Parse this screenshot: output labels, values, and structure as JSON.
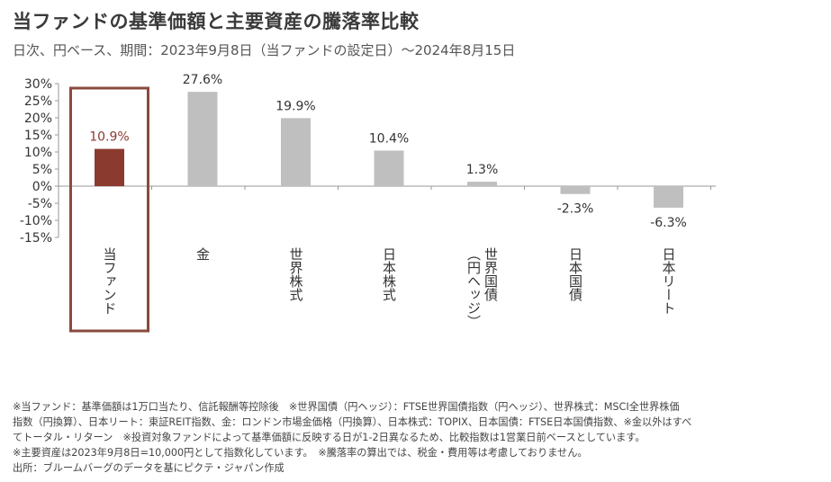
{
  "title": "当ファンドの基準価額と主要資産の騰落率比較",
  "subtitle": "日次、円ベース、期間：2023年9月8日（当ファンドの設定日）～2024年8月15日",
  "chart_data": {
    "type": "bar",
    "categories": [
      "当ファンド",
      "金",
      "世界株式",
      "日本株式",
      "世界国債（円ヘッジ）",
      "日本国債",
      "日本リート"
    ],
    "category_lines": [
      [
        "当ファンド"
      ],
      [
        "金"
      ],
      [
        "世界株式"
      ],
      [
        "日本株式"
      ],
      [
        "（円ヘッジ）",
        "世界国債"
      ],
      [
        "日本国債"
      ],
      [
        "日本リート"
      ]
    ],
    "values": [
      10.9,
      27.6,
      19.9,
      10.4,
      1.3,
      -2.3,
      -6.3
    ],
    "value_labels": [
      "10.9%",
      "27.6%",
      "19.9%",
      "10.4%",
      "1.3%",
      "-2.3%",
      "-6.3%"
    ],
    "ylim": [
      -15,
      30
    ],
    "yticks": [
      30,
      25,
      20,
      15,
      10,
      5,
      0,
      -5,
      -10,
      -15
    ],
    "ytick_labels": [
      "30%",
      "25%",
      "20%",
      "15%",
      "10%",
      "5%",
      "0%",
      "-5%",
      "-10%",
      "-15%"
    ],
    "highlight_index": 0,
    "colors": {
      "highlight": "#8b3a2f",
      "default": "#bfbfbf",
      "highlight_label": "#8b3a2f",
      "label": "#333333",
      "frame": "#8b4a3e",
      "axis": "#999999"
    }
  },
  "notes": [
    "※当ファンド：基準価額は1万口当たり、信託報酬等控除後　※世界国債（円ヘッジ）：FTSE世界国債指数（円ヘッジ）、世界株式：MSCI全世界株価",
    "指数（円換算）、日本リート：東証REIT指数、金：ロンドン市場金価格（円換算）、日本株式：TOPIX、日本国債：FTSE日本国債指数、※金以外はすべ",
    "てトータル・リターン　※投資対象ファンドによって基準価額に反映する日が1-2日異なるため、比較指数は1営業日前ベースとしています。",
    "※主要資産は2023年9月8日=10,000円として指数化しています。　※騰落率の算出では、税金・費用等は考慮しておりません。",
    "出所：ブルームバーグのデータを基にピクテ・ジャパン作成"
  ]
}
